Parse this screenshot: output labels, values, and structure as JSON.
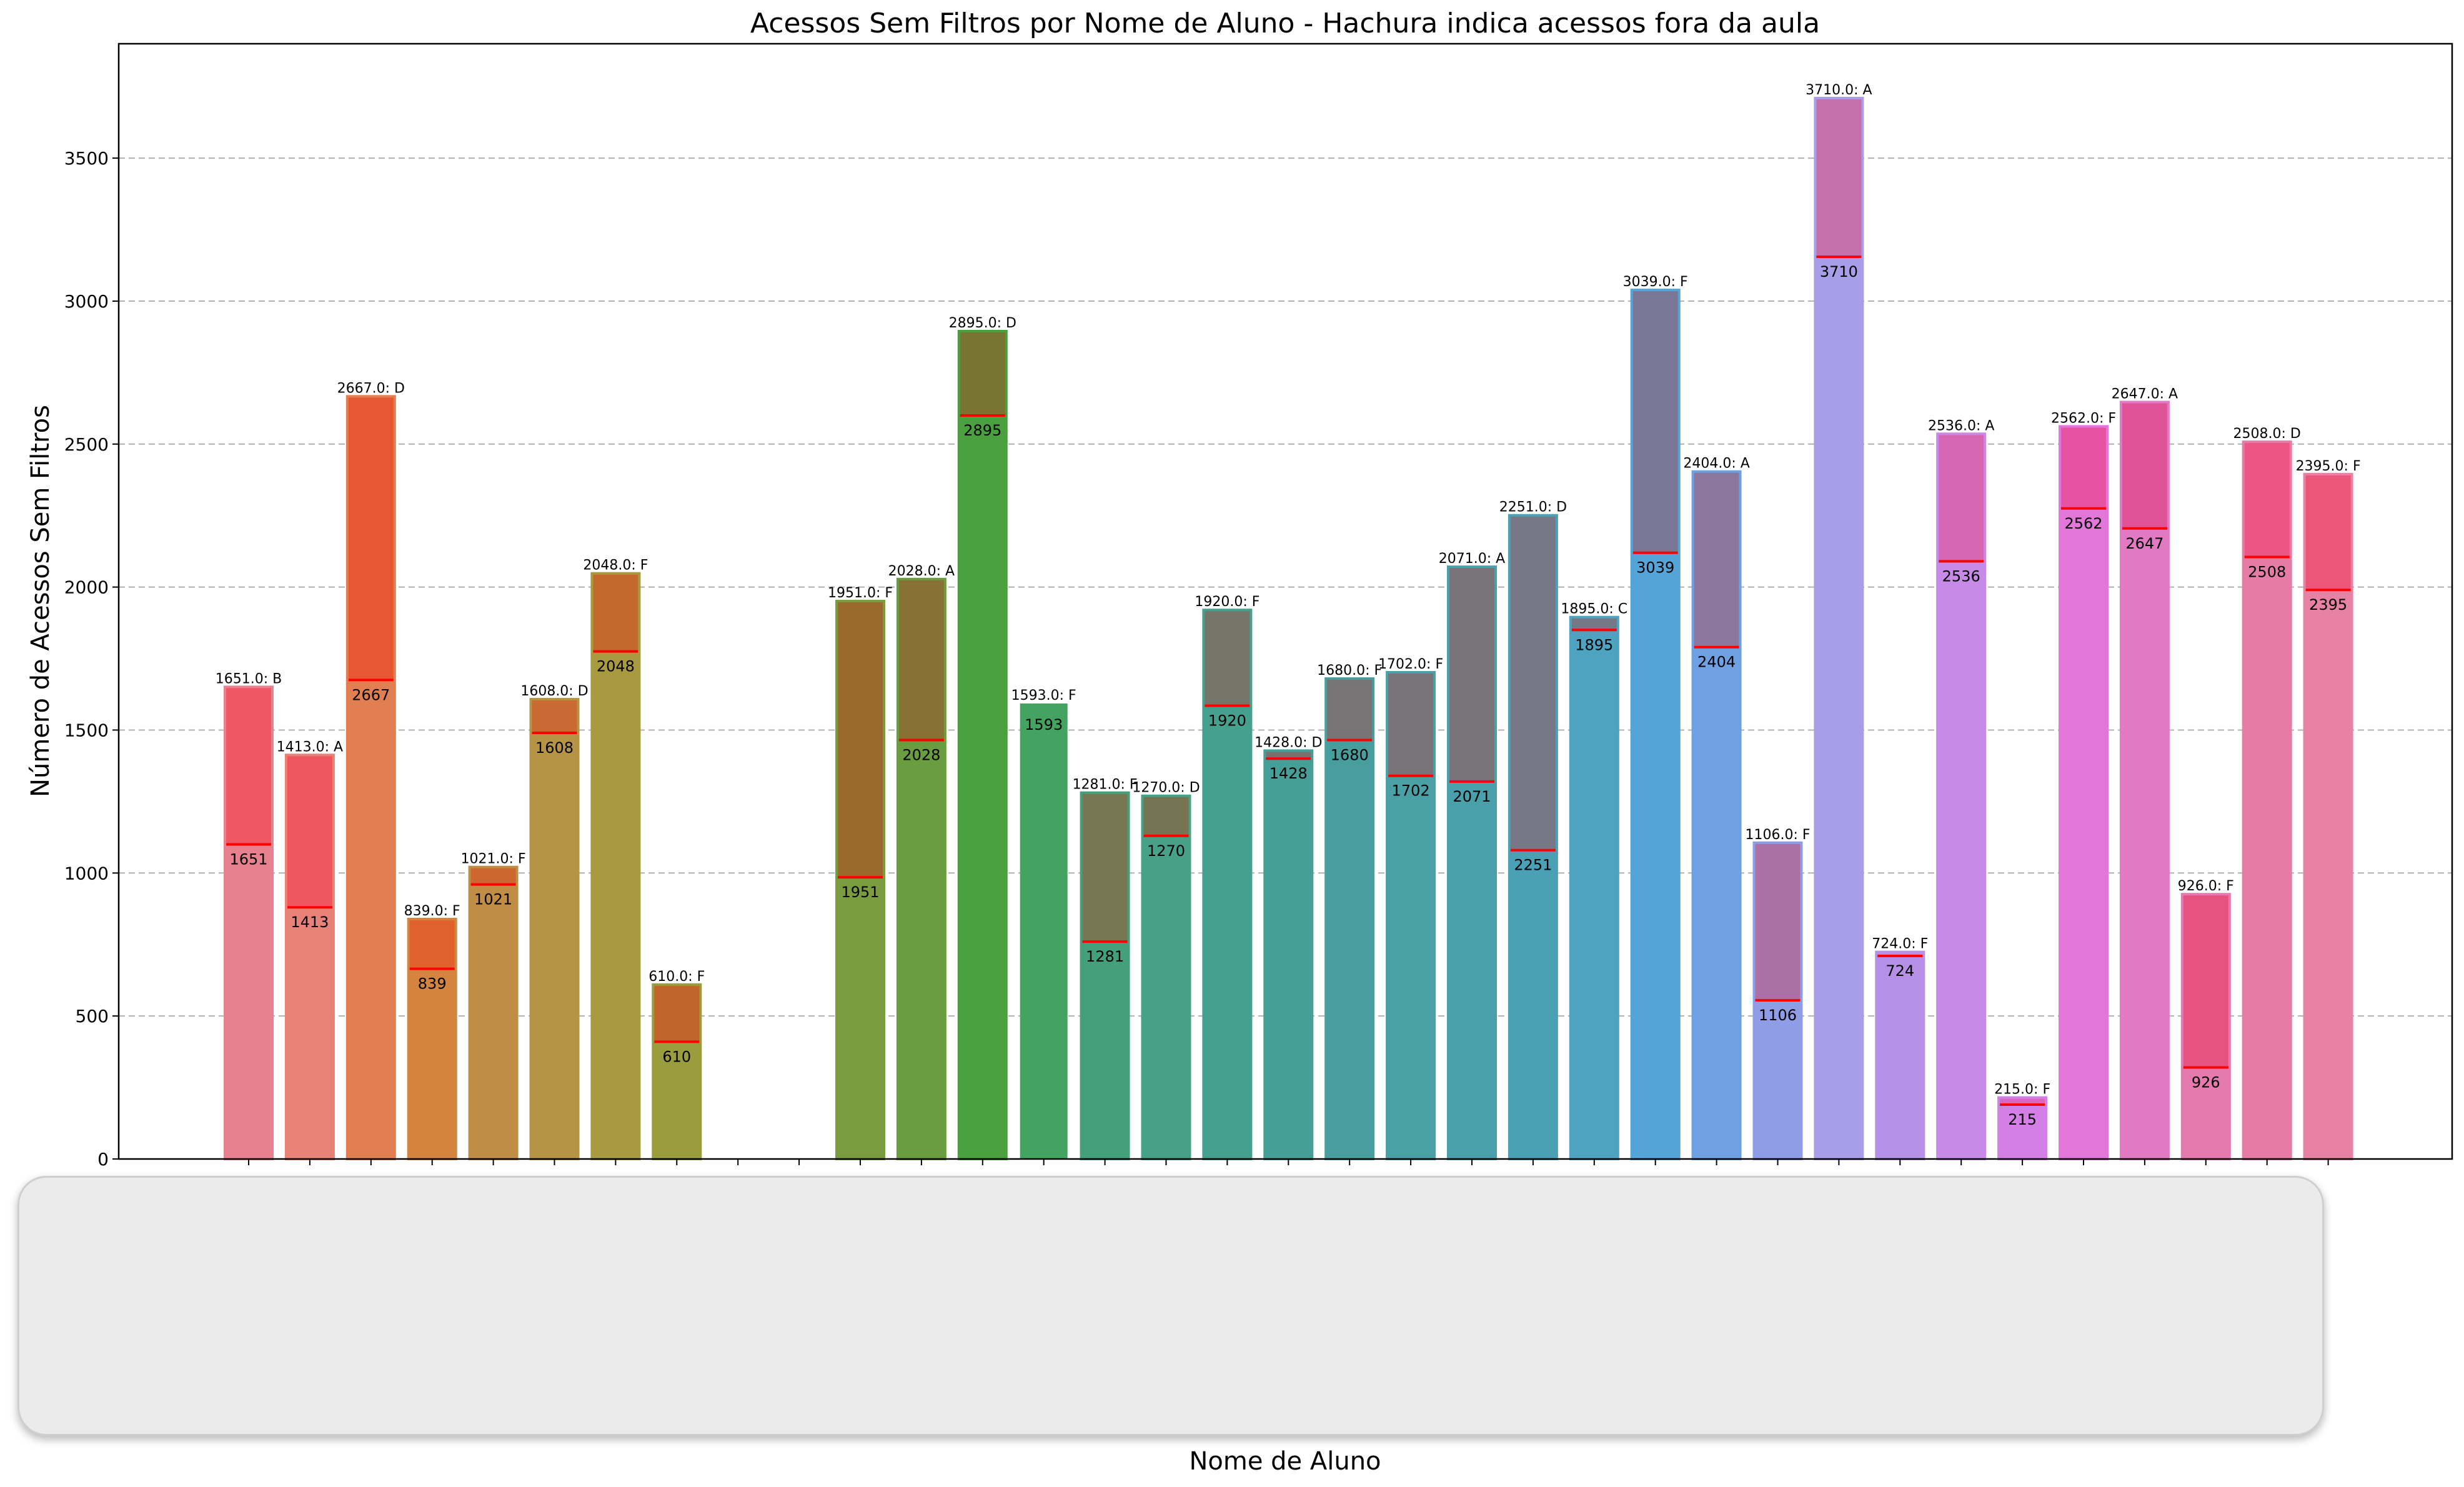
{
  "chart_data": {
    "type": "bar",
    "title": "Acessos Sem Filtros por Nome de Aluno - Hachura indica acessos fora da aula",
    "xlabel": "Nome de Aluno",
    "ylabel": "Número de Acessos Sem Filtros",
    "ylim": [
      0,
      3900
    ],
    "yticks": [
      0,
      500,
      1000,
      1500,
      2000,
      2500,
      3000,
      3500
    ],
    "grid": "y-dashed",
    "values": [
      1651,
      1413,
      2667,
      839,
      1021,
      1608,
      2048,
      610,
      0,
      0,
      1951,
      2028,
      2895,
      1593,
      1281,
      1270,
      1920,
      1428,
      1680,
      1702,
      2071,
      2251,
      1895,
      3039,
      2404,
      1106,
      3710,
      724,
      2536,
      215,
      2562,
      2647,
      926,
      2508,
      2395
    ],
    "top_labels": [
      "1651.0: B",
      "1413.0: A",
      "2667.0: D",
      "839.0: F",
      "1021.0: F",
      "1608.0: D",
      "2048.0: F",
      "610.0: F",
      "",
      "",
      "1951.0: F",
      "2028.0: A",
      "2895.0: D",
      "1593.0: F",
      "1281.0: F",
      "1270.0: D",
      "1920.0: F",
      "1428.0: D",
      "1680.0: F",
      "1702.0: F",
      "2071.0: A",
      "2251.0: D",
      "1895.0: C",
      "3039.0: F",
      "2404.0: A",
      "1106.0: F",
      "3710.0: A",
      "724.0: F",
      "2536.0: A",
      "215.0: F",
      "2562.0: F",
      "2647.0: A",
      "926.0: F",
      "2508.0: D",
      "2395.0: F"
    ],
    "inner_labels": [
      "1651",
      "1413",
      "2667",
      "839",
      "1021",
      "1608",
      "2048",
      "610",
      "",
      "",
      "1951",
      "2028",
      "2895",
      "1593",
      "1281",
      "1270",
      "1920",
      "1428",
      "1680",
      "1702",
      "2071",
      "2251",
      "1895",
      "3039",
      "2404",
      "1106",
      "3710",
      "724",
      "2536",
      "215",
      "2562",
      "2647",
      "926",
      "2508",
      "2395"
    ],
    "outside_class_lines": [
      1100,
      880,
      1675,
      665,
      960,
      1490,
      1775,
      410,
      null,
      null,
      985,
      1465,
      2600,
      null,
      760,
      1130,
      1585,
      1400,
      1465,
      1340,
      1320,
      1080,
      1850,
      2120,
      1790,
      555,
      3155,
      710,
      2090,
      190,
      2275,
      2205,
      320,
      2105,
      1990
    ],
    "colors": [
      "#e8818f",
      "#e88178",
      "#e27f52",
      "#d3853f",
      "#c08d46",
      "#b69445",
      "#a89a41",
      "#9a9d3d",
      "#8a9f3c",
      "#7c9e3e",
      "#799c40",
      "#6a9c40",
      "#4aa03f",
      "#44a360",
      "#44a07a",
      "#46a186",
      "#46a08e",
      "#469f96",
      "#489e9d",
      "#49a0a5",
      "#4aa0aa",
      "#4aa1b5",
      "#4da3c0",
      "#54a4d8",
      "#6ea0e2",
      "#8f9de6",
      "#a79de8",
      "#b68fe6",
      "#c78ae6",
      "#d37fe5",
      "#e277d9",
      "#e27ac3",
      "#e57aaf",
      "#e67ba6",
      "#e882a4"
    ],
    "overlay_colors": [
      "#f0505c",
      "#f0505c",
      "#e8502e",
      "#e05a2c",
      "#d0602c",
      "#cc6230",
      "#c8602c",
      "#c85c2a",
      null,
      null,
      "#a06028",
      "#8c6a34",
      "#806c30",
      "#80703a",
      "#80704c",
      "#806c4a",
      "#806c64",
      "#806a68",
      "#806c70",
      "#806c72",
      "#806c70",
      "#807080",
      "#80707e",
      "#80708a",
      "#907090",
      "#b06a9a",
      "#c868a0",
      "#b890e0",
      "#d860a8",
      "#e060b0",
      "#e84c98",
      "#e04c90",
      "#e84c78",
      "#ec5080",
      "#ec5072"
    ]
  }
}
